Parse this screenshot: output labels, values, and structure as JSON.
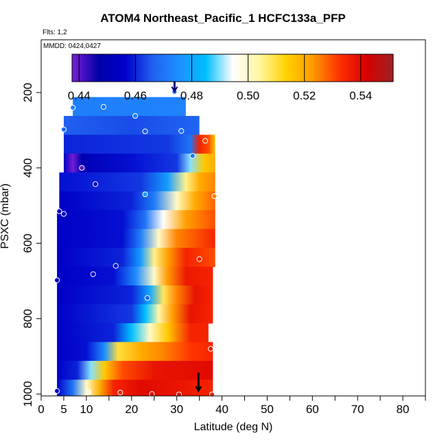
{
  "chart_data": {
    "type": "heatmap",
    "title": "ATOM4 Northeast_Pacific_1 HCFC133a_PFP",
    "flights_label": "Flts: 1,2",
    "dates_label": "MMDD: 0424,0427",
    "xlabel": "Latitude (deg N)",
    "ylabel": "PSXC (mbar)",
    "xlim": [
      0,
      85
    ],
    "ylim": [
      1005,
      60
    ],
    "x_ticks": [
      0,
      5,
      10,
      20,
      30,
      40,
      50,
      60,
      70,
      80
    ],
    "y_ticks": [
      200,
      400,
      600,
      800,
      1000
    ],
    "colorbar": {
      "min": 0.4375,
      "max": 0.5515,
      "tick_values": [
        0.44,
        0.46,
        0.48,
        0.5,
        0.52,
        0.54
      ],
      "tick_labels": [
        "0.44",
        "0.46",
        "0.48",
        "0.50",
        "0.52",
        "0.54"
      ],
      "colors": [
        "#7a1fd6",
        "#0000a8",
        "#0000cc",
        "#2060f0",
        "#1e90ff",
        "#00bfff",
        "#ffffff",
        "#fff6a0",
        "#ffd200",
        "#ff9a00",
        "#ff3000",
        "#d80000",
        "#a02020"
      ]
    },
    "curtain_rows": [
      {
        "p_top": 212,
        "p_bot": 262,
        "lat_start": 7,
        "lat_end": 32,
        "stops": [
          [
            7,
            0.472
          ],
          [
            32,
            0.473
          ]
        ]
      },
      {
        "p_top": 262,
        "p_bot": 312,
        "lat_start": 5,
        "lat_end": 35,
        "stops": [
          [
            5,
            0.466
          ],
          [
            20,
            0.464
          ],
          [
            35,
            0.467
          ]
        ]
      },
      {
        "p_top": 312,
        "p_bot": 362,
        "lat_start": 5,
        "lat_end": 38.5,
        "stops": [
          [
            5,
            0.46
          ],
          [
            28,
            0.462
          ],
          [
            33,
            0.47
          ],
          [
            35,
            0.535
          ],
          [
            37,
            0.53
          ],
          [
            38.5,
            0.515
          ]
        ]
      },
      {
        "p_top": 362,
        "p_bot": 412,
        "lat_start": 5,
        "lat_end": 38.5,
        "stops": [
          [
            5,
            0.455
          ],
          [
            7,
            0.438
          ],
          [
            9,
            0.45
          ],
          [
            20,
            0.458
          ],
          [
            30,
            0.462
          ],
          [
            33,
            0.49
          ],
          [
            36,
            0.515
          ],
          [
            38.5,
            0.52
          ]
        ]
      },
      {
        "p_top": 412,
        "p_bot": 462,
        "lat_start": 4,
        "lat_end": 38.5,
        "stops": [
          [
            4,
            0.458
          ],
          [
            22,
            0.462
          ],
          [
            28,
            0.478
          ],
          [
            32,
            0.505
          ],
          [
            35,
            0.52
          ],
          [
            38.5,
            0.525
          ]
        ]
      },
      {
        "p_top": 462,
        "p_bot": 512,
        "lat_start": 4,
        "lat_end": 38.5,
        "stops": [
          [
            4,
            0.455
          ],
          [
            20,
            0.46
          ],
          [
            25,
            0.472
          ],
          [
            30,
            0.5
          ],
          [
            34,
            0.52
          ],
          [
            38.5,
            0.528
          ]
        ]
      },
      {
        "p_top": 512,
        "p_bot": 562,
        "lat_start": 3.5,
        "lat_end": 38.5,
        "stops": [
          [
            3.5,
            0.455
          ],
          [
            18,
            0.458
          ],
          [
            23,
            0.47
          ],
          [
            27,
            0.495
          ],
          [
            32,
            0.522
          ],
          [
            38.5,
            0.53
          ]
        ]
      },
      {
        "p_top": 562,
        "p_bot": 612,
        "lat_start": 3.5,
        "lat_end": 38.5,
        "stops": [
          [
            3.5,
            0.455
          ],
          [
            18,
            0.458
          ],
          [
            22,
            0.472
          ],
          [
            26,
            0.5
          ],
          [
            30,
            0.525
          ],
          [
            38.5,
            0.535
          ]
        ]
      },
      {
        "p_top": 612,
        "p_bot": 662,
        "lat_start": 3.5,
        "lat_end": 38.5,
        "stops": [
          [
            3.5,
            0.455
          ],
          [
            18,
            0.46
          ],
          [
            22,
            0.478
          ],
          [
            25,
            0.505
          ],
          [
            28,
            0.522
          ],
          [
            32,
            0.535
          ],
          [
            38.5,
            0.53
          ]
        ]
      },
      {
        "p_top": 662,
        "p_bot": 712,
        "lat_start": 3.5,
        "lat_end": 38,
        "stops": [
          [
            3.5,
            0.455
          ],
          [
            16,
            0.458
          ],
          [
            21,
            0.475
          ],
          [
            25,
            0.5
          ],
          [
            28,
            0.523
          ],
          [
            32,
            0.537
          ],
          [
            38,
            0.535
          ]
        ]
      },
      {
        "p_top": 712,
        "p_bot": 762,
        "lat_start": 3.5,
        "lat_end": 38,
        "stops": [
          [
            3.5,
            0.455
          ],
          [
            20,
            0.46
          ],
          [
            24,
            0.48
          ],
          [
            27,
            0.508
          ],
          [
            30,
            0.525
          ],
          [
            34,
            0.538
          ],
          [
            38,
            0.535
          ]
        ]
      },
      {
        "p_top": 762,
        "p_bot": 812,
        "lat_start": 3.5,
        "lat_end": 38,
        "stops": [
          [
            3.5,
            0.455
          ],
          [
            20,
            0.462
          ],
          [
            23,
            0.485
          ],
          [
            26,
            0.503
          ],
          [
            29,
            0.522
          ],
          [
            33,
            0.538
          ],
          [
            38,
            0.535
          ]
        ]
      },
      {
        "p_top": 812,
        "p_bot": 862,
        "lat_start": 3.5,
        "lat_end": 37,
        "stops": [
          [
            3.5,
            0.455
          ],
          [
            16,
            0.46
          ],
          [
            20,
            0.485
          ],
          [
            24,
            0.5
          ],
          [
            28,
            0.515
          ],
          [
            33,
            0.535
          ],
          [
            37,
            0.535
          ]
        ]
      },
      {
        "p_top": 862,
        "p_bot": 912,
        "lat_start": 3.5,
        "lat_end": 38,
        "stops": [
          [
            3.5,
            0.455
          ],
          [
            10,
            0.458
          ],
          [
            14,
            0.475
          ],
          [
            17,
            0.51
          ],
          [
            22,
            0.52
          ],
          [
            27,
            0.525
          ],
          [
            33,
            0.532
          ],
          [
            38,
            0.535
          ]
        ]
      },
      {
        "p_top": 912,
        "p_bot": 962,
        "lat_start": 3.5,
        "lat_end": 38,
        "stops": [
          [
            3.5,
            0.455
          ],
          [
            8,
            0.46
          ],
          [
            11,
            0.49
          ],
          [
            14,
            0.515
          ],
          [
            18,
            0.53
          ],
          [
            25,
            0.538
          ],
          [
            38,
            0.54
          ]
        ]
      },
      {
        "p_top": 962,
        "p_bot": 1005,
        "lat_start": 3.5,
        "lat_end": 38,
        "stops": [
          [
            3.5,
            0.455
          ],
          [
            7,
            0.47
          ],
          [
            10,
            0.5
          ],
          [
            13,
            0.52
          ],
          [
            16,
            0.535
          ],
          [
            22,
            0.54
          ],
          [
            30,
            0.538
          ],
          [
            38,
            0.535
          ]
        ]
      }
    ],
    "sample_points": [
      {
        "lat": 29.5,
        "p": 198,
        "value": 0.47
      },
      {
        "lat": 7,
        "p": 240,
        "value": 0.472
      },
      {
        "lat": 13.8,
        "p": 238,
        "value": 0.47
      },
      {
        "lat": 20.8,
        "p": 262,
        "value": 0.472
      },
      {
        "lat": 5,
        "p": 298,
        "value": 0.467
      },
      {
        "lat": 23,
        "p": 303,
        "value": 0.466
      },
      {
        "lat": 31,
        "p": 302,
        "value": 0.47
      },
      {
        "lat": 36.3,
        "p": 328,
        "value": 0.53
      },
      {
        "lat": 33.5,
        "p": 368,
        "value": 0.47
      },
      {
        "lat": 9,
        "p": 400,
        "value": 0.44
      },
      {
        "lat": 12,
        "p": 443,
        "value": 0.455
      },
      {
        "lat": 23,
        "p": 470,
        "value": 0.478
      },
      {
        "lat": 38.3,
        "p": 475,
        "value": 0.525
      },
      {
        "lat": 4,
        "p": 515,
        "value": 0.455
      },
      {
        "lat": 5,
        "p": 522,
        "value": 0.455
      },
      {
        "lat": 35,
        "p": 642,
        "value": 0.535
      },
      {
        "lat": 16.5,
        "p": 660,
        "value": 0.458
      },
      {
        "lat": 11.5,
        "p": 682,
        "value": 0.457
      },
      {
        "lat": 3.5,
        "p": 698,
        "value": 0.455
      },
      {
        "lat": 23.5,
        "p": 745,
        "value": 0.468
      },
      {
        "lat": 37.5,
        "p": 880,
        "value": 0.536
      },
      {
        "lat": 3.5,
        "p": 992,
        "value": 0.455
      },
      {
        "lat": 10.5,
        "p": 995,
        "value": 0.5
      },
      {
        "lat": 17.5,
        "p": 996,
        "value": 0.535
      },
      {
        "lat": 24.5,
        "p": 1000,
        "value": 0.54
      },
      {
        "lat": 30.5,
        "p": 1001,
        "value": 0.54
      },
      {
        "lat": 37.8,
        "p": 1001,
        "value": 0.535
      }
    ],
    "markers": [
      {
        "lat": 29.5,
        "p": 170,
        "direction": "down",
        "color": "#000080"
      },
      {
        "lat": 34.8,
        "p": 965,
        "direction": "down",
        "color": "#000000"
      }
    ]
  }
}
